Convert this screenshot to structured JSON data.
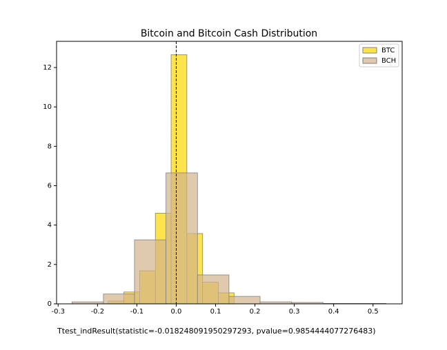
{
  "chart_data": {
    "type": "histogram",
    "title": "Bitcoin and Bitcoin Cash Distribution",
    "annotation": "Ttest_indResult(statistic=-0.018248091950297293, pvalue=0.9854444077276483)",
    "series": [
      {
        "name": "BTC",
        "color": "#ffd700",
        "bins": [
          -0.173,
          -0.133,
          -0.093,
          -0.053,
          -0.013,
          0.027,
          0.067,
          0.107,
          0.147
        ],
        "values": [
          0.14,
          0.6,
          1.68,
          4.6,
          12.65,
          3.57,
          1.1,
          0.56
        ]
      },
      {
        "name": "BCH",
        "color": "#d2b48c",
        "bins": [
          -0.265,
          -0.185,
          -0.106,
          -0.026,
          0.054,
          0.134,
          0.213,
          0.293,
          0.373,
          0.453,
          0.533
        ],
        "values": [
          0.1,
          0.5,
          3.25,
          6.65,
          1.47,
          0.38,
          0.1,
          0.07,
          0.02,
          0.02
        ]
      }
    ],
    "vline": 0,
    "xlim": [
      -0.304,
      0.574
    ],
    "ylim": [
      0,
      13.33
    ],
    "xticks": [
      -0.3,
      -0.2,
      -0.1,
      {
        "value": 0,
        "label": "0.0"
      },
      0.1,
      0.2,
      0.3,
      0.4,
      0.5
    ],
    "yticks": [
      0,
      2,
      4,
      6,
      8,
      10,
      12
    ],
    "legend": "upper right"
  }
}
